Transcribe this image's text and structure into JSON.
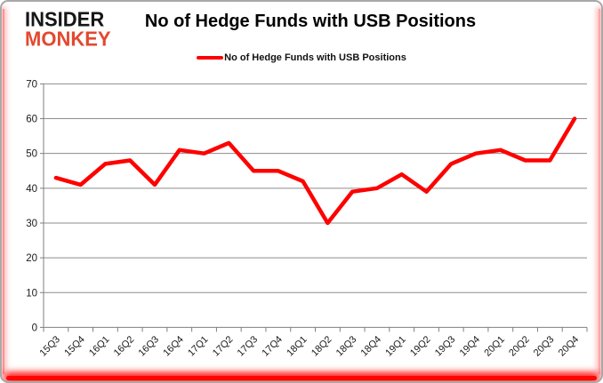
{
  "header": {
    "logo_line1": "INSIDER",
    "logo_line2": "MONKEY",
    "title": "No of Hedge Funds with USB Positions"
  },
  "legend": {
    "label": "No of Hedge Funds with USB Positions",
    "color": "#ff0000"
  },
  "colors": {
    "series_line": "#ff0000",
    "gridline": "#8c8c8c",
    "axis": "#7f7f7f",
    "tick_text": "#1a1a1a",
    "logo_red": "#e2492f",
    "logo_black": "#161616",
    "frame_border": "#a8a8a8",
    "edge_glow": "#ff0000"
  },
  "chart_data": {
    "type": "line",
    "title": "No of Hedge Funds with USB Positions",
    "categories": [
      "15Q3",
      "15Q4",
      "16Q1",
      "16Q2",
      "16Q3",
      "16Q4",
      "17Q1",
      "17Q2",
      "17Q3",
      "17Q4",
      "18Q1",
      "18Q2",
      "18Q3",
      "18Q4",
      "19Q1",
      "19Q2",
      "19Q3",
      "19Q4",
      "20Q1",
      "20Q2",
      "20Q3",
      "20Q4"
    ],
    "series": [
      {
        "name": "No of Hedge Funds with USB Positions",
        "color": "#ff0000",
        "values": [
          43,
          41,
          47,
          48,
          41,
          51,
          50,
          53,
          45,
          45,
          42,
          30,
          39,
          40,
          44,
          39,
          47,
          50,
          51,
          48,
          48,
          60
        ]
      }
    ],
    "ylabel": "",
    "xlabel": "",
    "ylim": [
      0,
      70
    ],
    "ytick_step": 10,
    "grid": "horizontal",
    "legend_position": "top-center",
    "x_label_rotation_deg": -45
  }
}
